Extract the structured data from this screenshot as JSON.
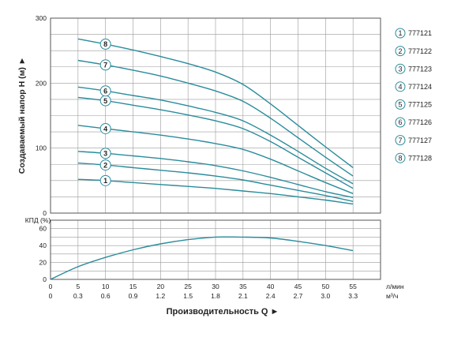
{
  "chart_data": {
    "type": "line",
    "colors": {
      "curve": "#2a8c9c",
      "grid": "#9a9a9a",
      "frame": "#555555",
      "marker_fill": "#ffffff"
    },
    "head_chart": {
      "ylabel": "Создаваемый напор H (м) ►",
      "ylim": [
        0,
        300
      ],
      "y_ticks": [
        "0",
        "100",
        "200",
        "300"
      ],
      "x_ticks_lpm": [
        "5",
        "10",
        "15",
        "20",
        "25",
        "30",
        "35",
        "40",
        "45",
        "50",
        "55"
      ],
      "series": [
        {
          "marker": "1",
          "name": "777121",
          "x": [
            5,
            10,
            15,
            20,
            25,
            30,
            35,
            40,
            45,
            50,
            55
          ],
          "values": [
            52,
            50,
            47,
            44,
            41,
            38,
            34,
            30,
            25,
            20,
            14
          ]
        },
        {
          "marker": "2",
          "name": "777122",
          "x": [
            5,
            10,
            15,
            20,
            25,
            30,
            35,
            40,
            45,
            50,
            55
          ],
          "values": [
            77,
            74,
            70,
            66,
            62,
            57,
            51,
            43,
            35,
            27,
            18
          ]
        },
        {
          "marker": "3",
          "name": "777123",
          "x": [
            5,
            10,
            15,
            20,
            25,
            30,
            35,
            40,
            45,
            50,
            55
          ],
          "values": [
            95,
            92,
            88,
            84,
            79,
            73,
            65,
            55,
            44,
            33,
            24
          ]
        },
        {
          "marker": "4",
          "name": "777124",
          "x": [
            5,
            10,
            15,
            20,
            25,
            30,
            35,
            40,
            45,
            50,
            55
          ],
          "values": [
            135,
            130,
            125,
            120,
            114,
            107,
            98,
            83,
            65,
            47,
            30
          ]
        },
        {
          "marker": "5",
          "name": "777125",
          "x": [
            5,
            10,
            15,
            20,
            25,
            30,
            35,
            40,
            45,
            50,
            55
          ],
          "values": [
            178,
            173,
            166,
            159,
            151,
            142,
            130,
            110,
            86,
            62,
            38
          ]
        },
        {
          "marker": "6",
          "name": "777126",
          "x": [
            5,
            10,
            15,
            20,
            25,
            30,
            35,
            40,
            45,
            50,
            55
          ],
          "values": [
            194,
            188,
            181,
            174,
            165,
            155,
            142,
            120,
            95,
            69,
            45
          ]
        },
        {
          "marker": "7",
          "name": "777127",
          "x": [
            5,
            10,
            15,
            20,
            25,
            30,
            35,
            40,
            45,
            50,
            55
          ],
          "values": [
            235,
            228,
            220,
            211,
            200,
            188,
            172,
            146,
            116,
            86,
            57
          ]
        },
        {
          "marker": "8",
          "name": "777128",
          "x": [
            5,
            10,
            15,
            20,
            25,
            30,
            35,
            40,
            45,
            50,
            55
          ],
          "values": [
            268,
            260,
            251,
            241,
            230,
            217,
            198,
            168,
            135,
            102,
            70
          ]
        }
      ]
    },
    "efficiency_chart": {
      "ylabel": "КПД (%)",
      "ylim": [
        0,
        70
      ],
      "y_ticks": [
        "0",
        "20",
        "40",
        "60"
      ],
      "x": [
        0,
        5,
        10,
        15,
        20,
        25,
        30,
        35,
        40,
        45,
        50,
        55
      ],
      "values": [
        0,
        15,
        26,
        35,
        42,
        47,
        50,
        50,
        49,
        45,
        40,
        34
      ]
    },
    "x_axis": {
      "lpm_ticks": [
        "0",
        "5",
        "10",
        "15",
        "20",
        "25",
        "30",
        "35",
        "40",
        "45",
        "50",
        "55"
      ],
      "lpm_unit": "л/мин",
      "m3h_ticks": [
        "0",
        "0.3",
        "0.6",
        "0.9",
        "1.2",
        "1.5",
        "1.8",
        "2.1",
        "2.4",
        "2.7",
        "3.0",
        "3.3"
      ],
      "m3h_unit": "м³/ч",
      "xlabel": "Производительность Q ►"
    }
  }
}
